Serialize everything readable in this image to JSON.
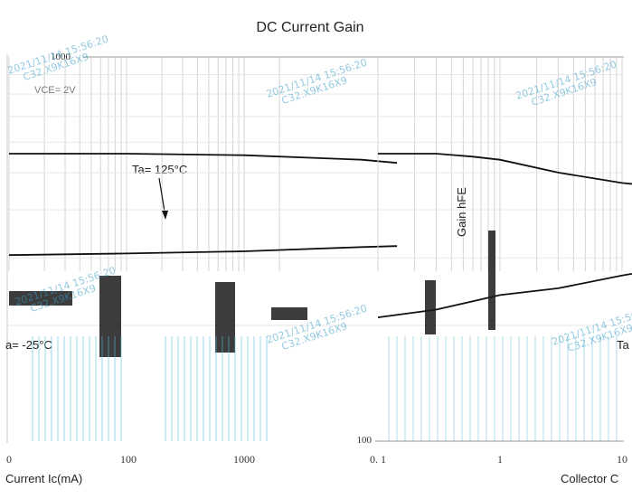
{
  "chart_data": [
    {
      "type": "line",
      "title": "",
      "xlabel": "Current  Ic(mA)",
      "ylabel": "",
      "x_tick_labels": [
        "0",
        "100",
        "1000"
      ],
      "curve_labels": [
        "Ta= 125°C",
        "a= -25°C"
      ],
      "series": [
        {
          "name": "Ta= 125°C",
          "x": [
            1,
            10,
            100,
            1000,
            2000
          ],
          "y": [
            560,
            560,
            555,
            540,
            530
          ]
        },
        {
          "name": "a= -25°C",
          "x": [
            1,
            10,
            100,
            1000,
            2000
          ],
          "y": [
            305,
            308,
            312,
            320,
            322
          ]
        }
      ]
    },
    {
      "type": "line",
      "title": "DC Current Gain",
      "xlabel": "Collector C",
      "ylabel": "Gain  hFE",
      "ylim": [
        100,
        1000
      ],
      "y_tick_labels": [
        "1000",
        "100"
      ],
      "x_tick_labels": [
        "0. 1",
        "1",
        "10"
      ],
      "top_left_label": "VCE= 2V",
      "right_label": "Ta",
      "series": [
        {
          "name": "",
          "x": [
            0.1,
            0.3,
            0.6,
            1,
            3,
            10,
            20
          ],
          "y": [
            560,
            560,
            550,
            540,
            500,
            470,
            460
          ]
        },
        {
          "name": "",
          "x": [
            0.1,
            0.3,
            1,
            3,
            10,
            20
          ],
          "y": [
            210,
            220,
            240,
            250,
            270,
            280
          ]
        }
      ]
    }
  ],
  "watermark": {
    "text_lines": [
      "2021/11/14 15:56:20",
      "C32.X9K16X9"
    ]
  }
}
